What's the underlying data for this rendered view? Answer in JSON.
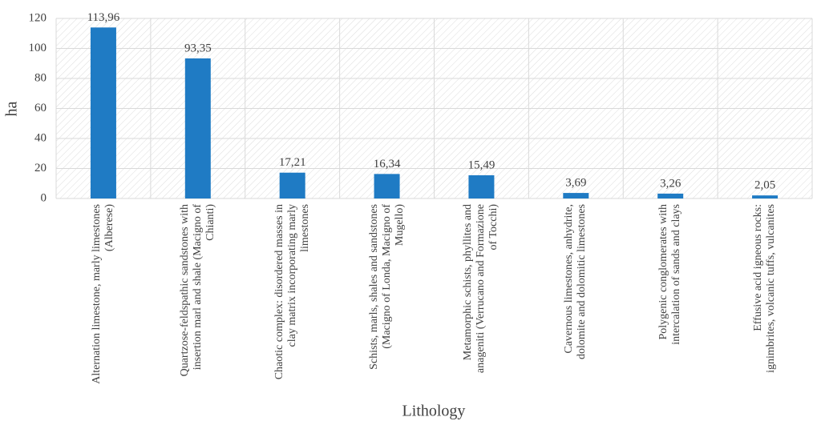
{
  "chart_data": {
    "type": "bar",
    "x_label": "Lithology",
    "y_label": "ha",
    "categories": [
      "Alternation limestone, marly limestones (Alberese)",
      "Quartzose-feldspathic sandstones with insertion marl and shale (Macigno of Chianti)",
      "Chaotic complex: disordered masses in clay matrix incorporating marly limestones",
      "Schists, marls, shales and sandstones (Macigno of Londa, Macigno of Mugello)",
      "Metamorphic schists, phyllites and anageniti (Verrucano and Formazione of Tocchi)",
      "Cavernous limestones, anhydrite, dolomite and dolomitic limestones",
      "Polygenic conglomerates with intercalation of sands and clays",
      "Effusive acid igneous rocks: ignimbrites, volcanic tuffs, vulcanites"
    ],
    "values": [
      113.96,
      93.35,
      17.21,
      16.34,
      15.49,
      3.69,
      3.26,
      2.05
    ],
    "value_labels": [
      "113,96",
      "93,35",
      "17,21",
      "16,34",
      "15,49",
      "3,69",
      "3,26",
      "2,05"
    ],
    "color": "#1f7bc4",
    "ylim": [
      0,
      120
    ],
    "yticks": [
      0,
      20,
      40,
      60,
      80,
      100,
      120
    ],
    "grid": true
  }
}
